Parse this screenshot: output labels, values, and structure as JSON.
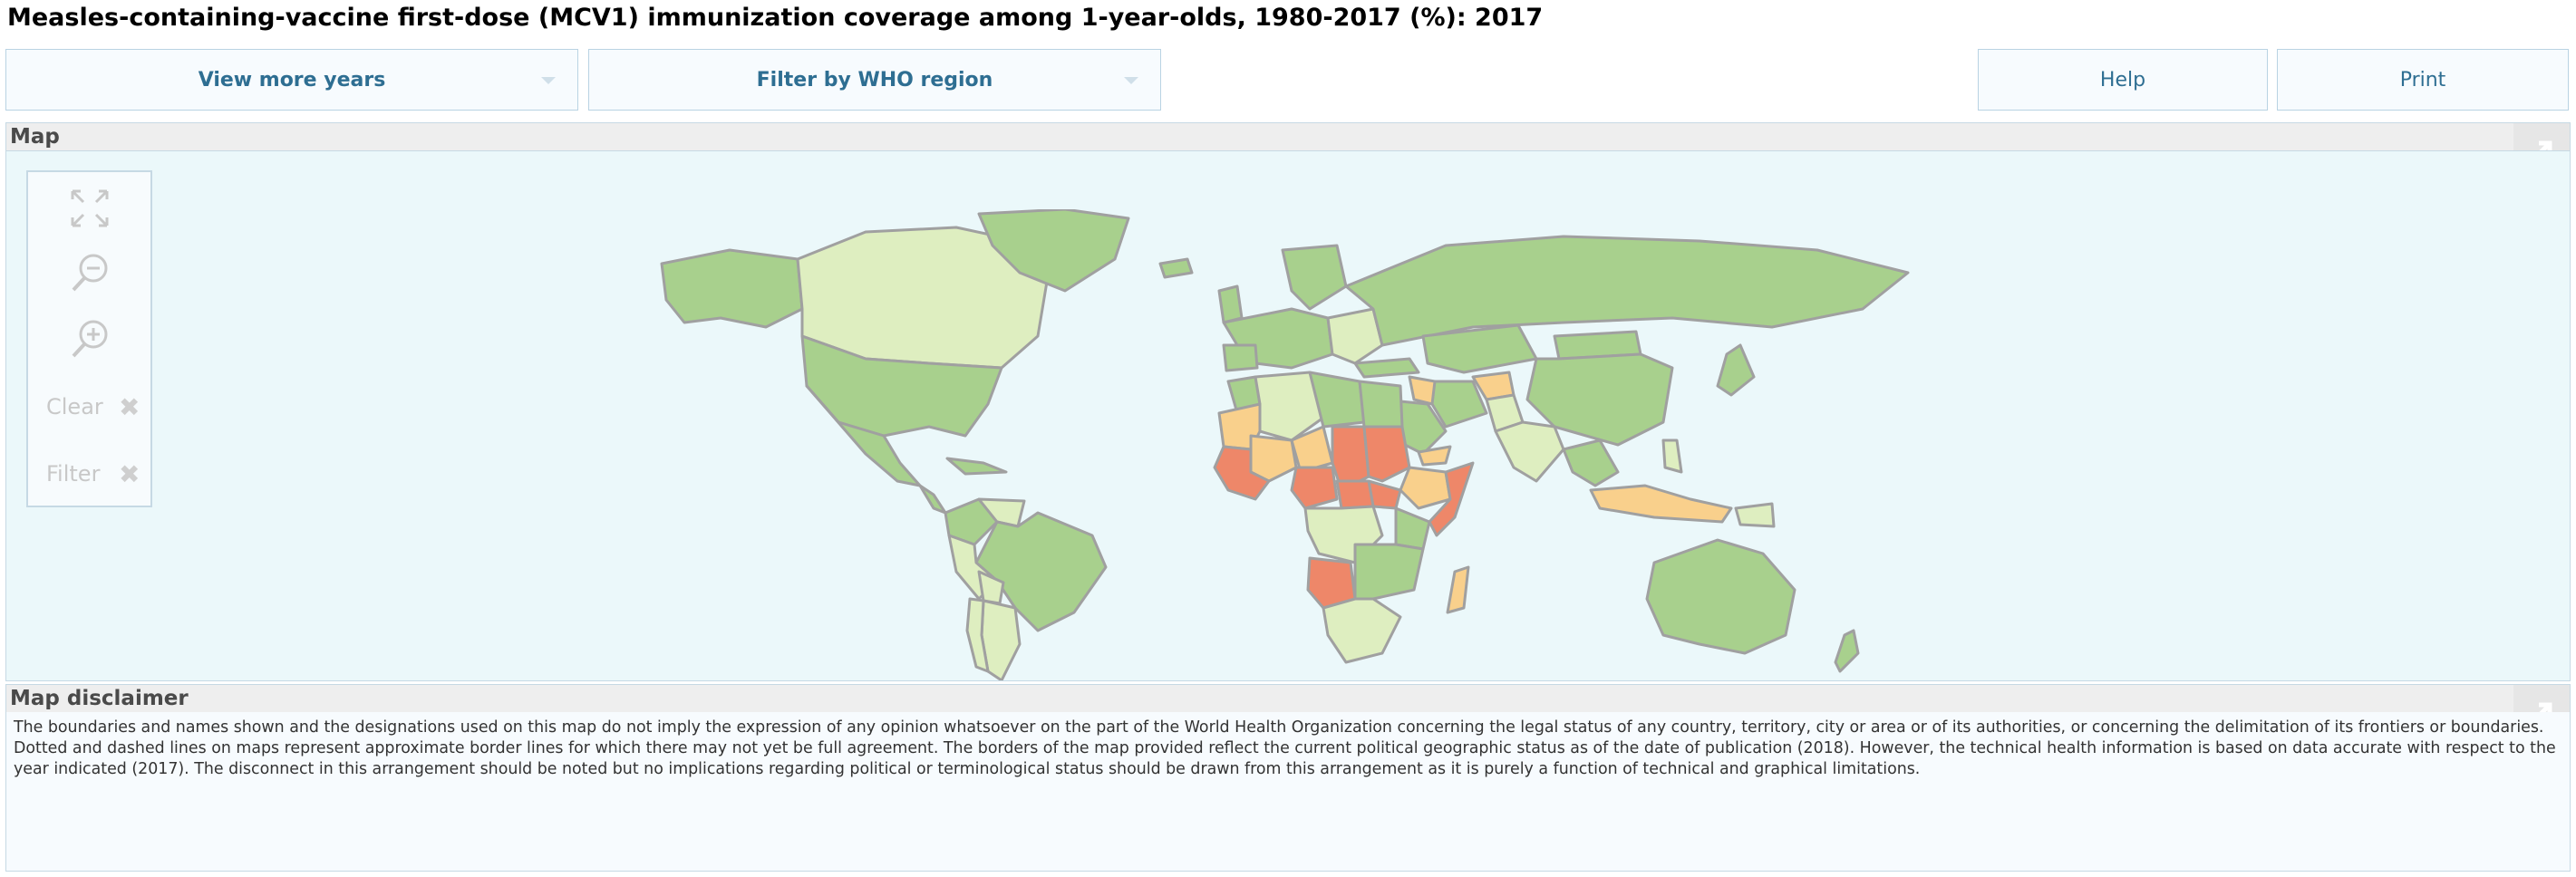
{
  "page": {
    "title": "Measles-containing-vaccine first-dose (MCV1) immunization coverage among 1-year-olds, 1980-2017 (%): 2017"
  },
  "toolbar": {
    "view_more_years": "View more years",
    "filter_region": "Filter by WHO region",
    "help": "Help",
    "print": "Print"
  },
  "map_panel": {
    "title": "Map",
    "controls": {
      "zoom_full_icon": "fullscreen-icon",
      "zoom_out_icon": "zoom-out-icon",
      "zoom_in_icon": "zoom-in-icon",
      "clear_label": "Clear",
      "filter_label": "Filter"
    },
    "colors": {
      "highest": "#a8d08d",
      "high": "#deeec0",
      "medium": "#f9d08c",
      "low": "#ee8769",
      "border": "#a0a0a0",
      "background": "#ebf8fa"
    }
  },
  "disclaimer": {
    "title": "Map disclaimer",
    "text": "The boundaries and names shown and the designations used on this map do not imply the expression of any opinion whatsoever on the part of the World Health Organization concerning the legal status of any country, territory, city or area or of its authorities, or concerning the delimitation of its frontiers or boundaries. Dotted and dashed lines on maps represent approximate border lines for which there may not yet be full agreement. The borders of the map provided reflect the current political geographic status as of the date of publication (2018). However, the technical health information is based on data accurate with respect to the year indicated (2017). The disconnect in this arrangement should be noted but no implications regarding political or terminological status should be drawn from this arrangement as it is purely a function of technical and graphical limitations."
  }
}
